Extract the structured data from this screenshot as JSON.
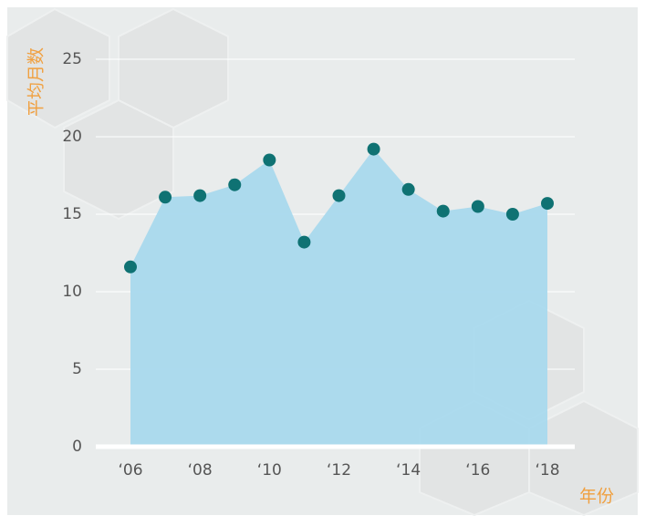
{
  "chart_data": {
    "type": "area",
    "x_label": "年份",
    "y_label": "平均月数",
    "categories": [
      "‘06",
      null,
      "‘08",
      null,
      "‘10",
      null,
      "‘12",
      null,
      "‘14",
      null,
      "‘16",
      null,
      "‘18"
    ],
    "series": [
      {
        "color": "#a9d9ed",
        "marker_color": "#0f7273",
        "values": [
          11.6,
          16.1,
          16.2,
          16.9,
          18.5,
          13.2,
          16.2,
          19.2,
          16.6,
          15.2,
          15.5,
          15.0,
          15.7
        ]
      }
    ],
    "ylim": [
      0,
      25
    ],
    "yticks": [
      0,
      5,
      10,
      15,
      20,
      25
    ],
    "grid": true
  }
}
